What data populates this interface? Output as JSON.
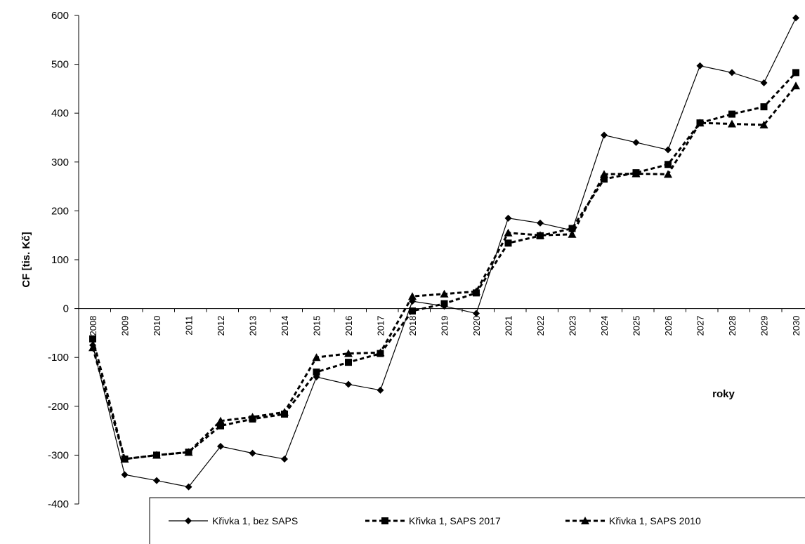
{
  "chart_data": {
    "type": "line",
    "title": "",
    "xlabel": "roky",
    "ylabel": "CF [tis. Kč]",
    "ylim": [
      -400,
      600
    ],
    "yticks": [
      "600",
      "500",
      "400",
      "300",
      "200",
      "100",
      "0",
      "-100",
      "-200",
      "-300",
      "-400"
    ],
    "categories": [
      "2008",
      "2009",
      "2010",
      "2011",
      "2012",
      "2013",
      "2014",
      "2015",
      "2016",
      "2017",
      "2018",
      "2019",
      "2020",
      "2021",
      "2022",
      "2023",
      "2024",
      "2025",
      "2026",
      "2027",
      "2028",
      "2029",
      "2030"
    ],
    "grid": false,
    "legend_position": "bottom",
    "series": [
      {
        "name": "Křivka 1, bez SAPS",
        "marker": "diamond",
        "line_style": "solid",
        "color": "#000000",
        "values": [
          -75,
          -340,
          -352,
          -365,
          -282,
          -296,
          -308,
          -140,
          -155,
          -167,
          15,
          5,
          -10,
          185,
          175,
          160,
          355,
          340,
          325,
          497,
          483,
          462,
          595
        ]
      },
      {
        "name": "Křivka 1, SAPS 2017",
        "marker": "square",
        "line_style": "dashed",
        "color": "#000000",
        "values": [
          -62,
          -308,
          -300,
          -294,
          -240,
          -226,
          -216,
          -130,
          -110,
          -92,
          -5,
          10,
          32,
          134,
          149,
          164,
          265,
          278,
          295,
          380,
          398,
          413,
          483
        ]
      },
      {
        "name": "Křivka 1, SAPS 2010",
        "marker": "triangle",
        "line_style": "dashed",
        "color": "#000000",
        "values": [
          -80,
          -308,
          -300,
          -294,
          -230,
          -222,
          -212,
          -100,
          -92,
          -90,
          25,
          30,
          35,
          155,
          150,
          152,
          275,
          276,
          275,
          380,
          378,
          376,
          456
        ]
      }
    ]
  }
}
